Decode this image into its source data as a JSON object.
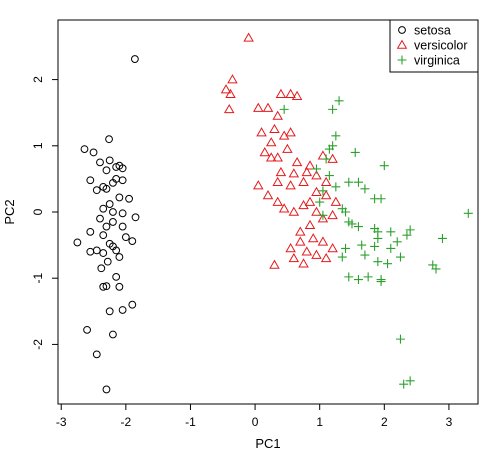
{
  "chart_data": {
    "type": "scatter",
    "xlabel": "PC1",
    "ylabel": "PC2",
    "xlim": [
      -3.05,
      3.45
    ],
    "ylim": [
      -2.9,
      2.9
    ],
    "x_ticks": [
      -3,
      -2,
      -1,
      0,
      1,
      2,
      3
    ],
    "y_ticks": [
      -2,
      -1,
      0,
      1,
      2
    ],
    "grid": false,
    "legend_position": "top-right",
    "series": [
      {
        "name": "setosa",
        "marker": "circle",
        "color": "#000000",
        "points": [
          [
            -1.86,
            2.31
          ],
          [
            -2.26,
            1.1
          ],
          [
            -2.64,
            0.95
          ],
          [
            -2.5,
            0.9
          ],
          [
            -2.25,
            0.78
          ],
          [
            -2.4,
            0.75
          ],
          [
            -2.1,
            0.7
          ],
          [
            -2.15,
            0.68
          ],
          [
            -2.05,
            0.66
          ],
          [
            -2.3,
            0.63
          ],
          [
            -2.55,
            0.48
          ],
          [
            -2.15,
            0.5
          ],
          [
            -2.05,
            0.48
          ],
          [
            -2.2,
            0.44
          ],
          [
            -2.35,
            0.38
          ],
          [
            -2.45,
            0.33
          ],
          [
            -2.3,
            0.35
          ],
          [
            -2.1,
            0.22
          ],
          [
            -1.95,
            0.2
          ],
          [
            -2.25,
            0.12
          ],
          [
            -2.35,
            0.05
          ],
          [
            -2.2,
            0.0
          ],
          [
            -2.05,
            -0.02
          ],
          [
            -1.85,
            -0.08
          ],
          [
            -2.4,
            -0.1
          ],
          [
            -2.2,
            -0.15
          ],
          [
            -2.3,
            -0.22
          ],
          [
            -2.05,
            -0.22
          ],
          [
            -2.55,
            -0.3
          ],
          [
            -2.35,
            -0.35
          ],
          [
            -2.0,
            -0.38
          ],
          [
            -2.75,
            -0.46
          ],
          [
            -1.9,
            -0.44
          ],
          [
            -2.25,
            -0.48
          ],
          [
            -2.2,
            -0.52
          ],
          [
            -2.15,
            -0.58
          ],
          [
            -2.45,
            -0.58
          ],
          [
            -2.55,
            -0.6
          ],
          [
            -2.35,
            -0.62
          ],
          [
            -2.1,
            -0.68
          ],
          [
            -2.28,
            -0.75
          ],
          [
            -2.38,
            -0.85
          ],
          [
            -2.15,
            -0.98
          ],
          [
            -2.3,
            -1.12
          ],
          [
            -2.35,
            -1.13
          ],
          [
            -2.1,
            -1.13
          ],
          [
            -1.9,
            -1.4
          ],
          [
            -2.05,
            -1.48
          ],
          [
            -2.25,
            -1.5
          ],
          [
            -2.2,
            -1.85
          ],
          [
            -2.6,
            -1.78
          ],
          [
            -2.45,
            -2.15
          ],
          [
            -2.3,
            -2.68
          ]
        ]
      },
      {
        "name": "versicolor",
        "marker": "triangle",
        "color": "#e41a1c",
        "points": [
          [
            -0.1,
            2.63
          ],
          [
            -0.35,
            2.0
          ],
          [
            -0.45,
            1.85
          ],
          [
            -0.38,
            1.78
          ],
          [
            -0.4,
            1.55
          ],
          [
            0.05,
            1.57
          ],
          [
            0.2,
            1.57
          ],
          [
            0.4,
            1.78
          ],
          [
            0.55,
            1.78
          ],
          [
            0.65,
            1.75
          ],
          [
            0.35,
            1.45
          ],
          [
            0.3,
            1.25
          ],
          [
            0.1,
            1.2
          ],
          [
            0.25,
            1.05
          ],
          [
            0.45,
            1.15
          ],
          [
            0.55,
            1.2
          ],
          [
            0.5,
            0.95
          ],
          [
            0.15,
            0.9
          ],
          [
            0.25,
            0.82
          ],
          [
            0.35,
            0.82
          ],
          [
            0.65,
            0.75
          ],
          [
            0.85,
            0.7
          ],
          [
            1.05,
            0.85
          ],
          [
            1.2,
            0.8
          ],
          [
            1.1,
            0.45
          ],
          [
            0.95,
            0.55
          ],
          [
            0.8,
            0.6
          ],
          [
            0.6,
            0.58
          ],
          [
            0.4,
            0.6
          ],
          [
            0.35,
            0.45
          ],
          [
            0.55,
            0.4
          ],
          [
            0.75,
            0.45
          ],
          [
            0.95,
            0.3
          ],
          [
            1.1,
            0.25
          ],
          [
            1.25,
            0.15
          ],
          [
            0.05,
            0.4
          ],
          [
            0.2,
            0.25
          ],
          [
            0.35,
            0.15
          ],
          [
            0.45,
            0.05
          ],
          [
            0.6,
            0.0
          ],
          [
            0.75,
            0.1
          ],
          [
            0.85,
            0.15
          ],
          [
            0.95,
            0.0
          ],
          [
            1.05,
            -0.1
          ],
          [
            1.2,
            -0.05
          ],
          [
            0.85,
            -0.2
          ],
          [
            0.7,
            -0.3
          ],
          [
            0.9,
            -0.4
          ],
          [
            1.05,
            -0.45
          ],
          [
            0.7,
            -0.45
          ],
          [
            0.55,
            -0.55
          ],
          [
            0.8,
            -0.6
          ],
          [
            0.95,
            -0.65
          ],
          [
            1.1,
            -0.7
          ],
          [
            1.2,
            -0.55
          ],
          [
            0.3,
            -0.8
          ],
          [
            0.75,
            -0.78
          ],
          [
            0.6,
            -0.7
          ]
        ]
      },
      {
        "name": "virginica",
        "marker": "plus",
        "color": "#2ca02c",
        "points": [
          [
            1.3,
            1.68
          ],
          [
            1.2,
            1.55
          ],
          [
            0.45,
            1.55
          ],
          [
            1.25,
            1.15
          ],
          [
            1.2,
            1.0
          ],
          [
            1.15,
            0.95
          ],
          [
            1.1,
            0.8
          ],
          [
            1.55,
            0.9
          ],
          [
            2.0,
            0.7
          ],
          [
            0.95,
            0.65
          ],
          [
            1.15,
            0.55
          ],
          [
            1.45,
            0.45
          ],
          [
            1.6,
            0.45
          ],
          [
            1.25,
            0.38
          ],
          [
            1.05,
            0.32
          ],
          [
            1.7,
            0.35
          ],
          [
            1.85,
            0.2
          ],
          [
            1.95,
            0.2
          ],
          [
            1.0,
            0.15
          ],
          [
            1.35,
            0.05
          ],
          [
            1.4,
            0.0
          ],
          [
            1.05,
            -0.05
          ],
          [
            3.3,
            -0.02
          ],
          [
            1.45,
            -0.15
          ],
          [
            1.5,
            -0.18
          ],
          [
            1.6,
            -0.22
          ],
          [
            1.85,
            -0.25
          ],
          [
            1.9,
            -0.3
          ],
          [
            2.1,
            -0.3
          ],
          [
            2.4,
            -0.27
          ],
          [
            1.9,
            -0.4
          ],
          [
            2.2,
            -0.45
          ],
          [
            2.35,
            -0.35
          ],
          [
            2.9,
            -0.4
          ],
          [
            1.65,
            -0.5
          ],
          [
            1.85,
            -0.52
          ],
          [
            2.1,
            -0.55
          ],
          [
            1.4,
            -0.55
          ],
          [
            1.35,
            -0.68
          ],
          [
            1.7,
            -0.65
          ],
          [
            1.9,
            -0.75
          ],
          [
            2.05,
            -0.78
          ],
          [
            2.25,
            -0.68
          ],
          [
            2.75,
            -0.8
          ],
          [
            2.8,
            -0.86
          ],
          [
            1.45,
            -0.98
          ],
          [
            1.6,
            -1.02
          ],
          [
            1.75,
            -0.98
          ],
          [
            1.95,
            -1.02
          ],
          [
            1.95,
            -1.05
          ],
          [
            2.25,
            -1.92
          ],
          [
            2.3,
            -2.6
          ],
          [
            2.4,
            -2.55
          ]
        ]
      }
    ]
  }
}
